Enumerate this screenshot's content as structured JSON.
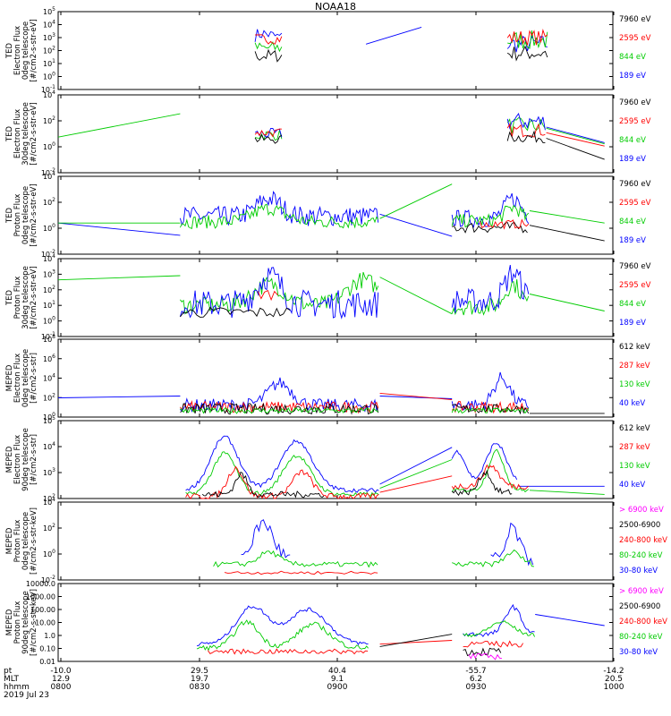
{
  "chart_data": {
    "type": "line",
    "title": "NOAA18",
    "x_ticks": [
      "-10.0",
      "29.5",
      "40.4",
      "-55.7",
      "-14.2"
    ],
    "mlt_ticks": [
      "12.9",
      "19.7",
      "9.1",
      "6.2",
      "20.5"
    ],
    "time_ticks": [
      "0800",
      "0830",
      "0900",
      "0930",
      "1000"
    ],
    "row_labels": [
      "pt",
      "MLT",
      "hhmm"
    ],
    "date": "2019 Jul 23",
    "panels": [
      {
        "ylabel": [
          "TED",
          "Electron Flux",
          "0deg telescope",
          "[#/cm2-s-str-eV]"
        ],
        "yticks": [
          "10^-1",
          "10^0",
          "10^1",
          "10^2",
          "10^3",
          "10^4",
          "10^5"
        ],
        "ylog_range": [
          -1,
          5
        ],
        "legend": [
          {
            "label": "7960 eV",
            "color": "#000000"
          },
          {
            "label": "2595 eV",
            "color": "#ff0000"
          },
          {
            "label": "844 eV",
            "color": "#00cc00"
          },
          {
            "label": "189 eV",
            "color": "#0000ff"
          }
        ]
      },
      {
        "ylabel": [
          "TED",
          "Electron Flux",
          "30deg telescope",
          "[#/cm2-s-str-eV]"
        ],
        "yticks": [
          "10^-2",
          "10^0",
          "10^2",
          "10^4"
        ],
        "ylog_range": [
          -2,
          5
        ],
        "legend": [
          {
            "label": "7960 eV",
            "color": "#000000"
          },
          {
            "label": "2595 eV",
            "color": "#ff0000"
          },
          {
            "label": "844 eV",
            "color": "#00cc00"
          },
          {
            "label": "189 eV",
            "color": "#0000ff"
          }
        ]
      },
      {
        "ylabel": [
          "TED",
          "Proton Flux",
          "0deg telescope",
          "[#/cm2-s-str-eV]"
        ],
        "yticks": [
          "10^-2",
          "10^0",
          "10^2",
          "10^4"
        ],
        "ylog_range": [
          -2,
          5
        ],
        "legend": [
          {
            "label": "7960 eV",
            "color": "#000000"
          },
          {
            "label": "2595 eV",
            "color": "#ff0000"
          },
          {
            "label": "844 eV",
            "color": "#00cc00"
          },
          {
            "label": "189 eV",
            "color": "#0000ff"
          }
        ]
      },
      {
        "ylabel": [
          "TED",
          "Proton Flux",
          "30deg telescope",
          "[#/cm2-s-str-eV]"
        ],
        "yticks": [
          "10^-1",
          "10^0",
          "10^1",
          "10^2",
          "10^3",
          "10^4"
        ],
        "ylog_range": [
          -1,
          4.5
        ],
        "legend": [
          {
            "label": "7960 eV",
            "color": "#000000"
          },
          {
            "label": "2595 eV",
            "color": "#ff0000"
          },
          {
            "label": "844 eV",
            "color": "#00cc00"
          },
          {
            "label": "189 eV",
            "color": "#0000ff"
          }
        ]
      },
      {
        "ylabel": [
          "MEPED",
          "Electron Flux",
          "0deg telescope",
          "[#/cm2-s-str]"
        ],
        "yticks": [
          "10^0",
          "10^2",
          "10^4",
          "10^6",
          "10^8"
        ],
        "ylog_range": [
          -0.5,
          8
        ],
        "legend": [
          {
            "label": "612 keV",
            "color": "#000000"
          },
          {
            "label": "287 keV",
            "color": "#ff0000"
          },
          {
            "label": "130 keV",
            "color": "#00cc00"
          },
          {
            "label": "40 keV",
            "color": "#0000ff"
          }
        ]
      },
      {
        "ylabel": [
          "MEPED",
          "Electron Flux",
          "90deg telescope",
          "[#/cm2-s-str]"
        ],
        "yticks": [
          "10^2",
          "10^3",
          "10^4",
          "10^5"
        ],
        "ylog_range": [
          1.7,
          5.5
        ],
        "legend": [
          {
            "label": "612 keV",
            "color": "#000000"
          },
          {
            "label": "287 keV",
            "color": "#ff0000"
          },
          {
            "label": "130 keV",
            "color": "#00cc00"
          },
          {
            "label": "40 keV",
            "color": "#0000ff"
          }
        ]
      },
      {
        "ylabel": [
          "MEPED",
          "Proton Flux",
          "0deg telescope",
          "[#/cm2-s-str-keV]"
        ],
        "yticks": [
          "10^-2",
          "10^0",
          "10^2",
          "10^4"
        ],
        "ylog_range": [
          -2.5,
          5
        ],
        "legend": [
          {
            "label": "> 6900 keV",
            "color": "#ff00ff"
          },
          {
            "label": "2500-6900",
            "color": "#000000"
          },
          {
            "label": "240-800 keV",
            "color": "#ff0000"
          },
          {
            "label": "80-240 keV",
            "color": "#00cc00"
          },
          {
            "label": "30-80 keV",
            "color": "#0000ff"
          }
        ]
      },
      {
        "ylabel": [
          "MEPED",
          "Proton Flux",
          "90deg telescope",
          "[#/cm2-s-str-keV]"
        ],
        "yticks": [
          "0.01",
          "0.10",
          "1.0",
          "10.00",
          "100.00",
          "1000.00",
          "10000.0"
        ],
        "ylog_range": [
          -2,
          4.3
        ],
        "legend": [
          {
            "label": "> 6900 keV",
            "color": "#ff00ff"
          },
          {
            "label": "2500-6900",
            "color": "#000000"
          },
          {
            "label": "240-800 keV",
            "color": "#ff0000"
          },
          {
            "label": "80-240 keV",
            "color": "#00cc00"
          },
          {
            "label": "30-80 keV",
            "color": "#0000ff"
          }
        ]
      }
    ]
  }
}
